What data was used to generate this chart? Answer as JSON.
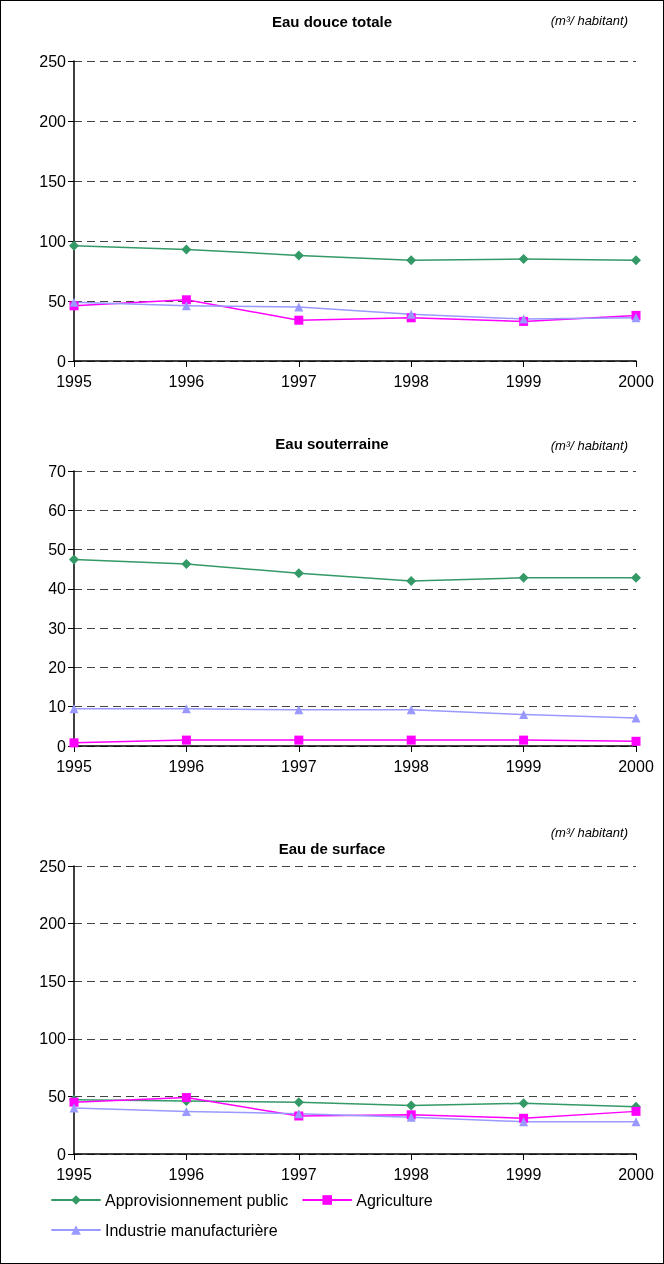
{
  "chart_data": [
    {
      "type": "line",
      "title": "Eau douce totale",
      "ylabel": "(m³/ habitant)",
      "categories": [
        "1995",
        "1996",
        "1997",
        "1998",
        "1999",
        "2000"
      ],
      "ylim": [
        0,
        250
      ],
      "yticks": [
        0,
        50,
        100,
        150,
        200,
        250
      ],
      "grid": "y",
      "legend": false,
      "line_style": "solid",
      "series": [
        {
          "color": "#339966",
          "marker": "diamond",
          "values": [
            96,
            93,
            88,
            84,
            85,
            84
          ]
        },
        {
          "color": "#ff00ff",
          "marker": "square",
          "values": [
            46,
            51,
            34,
            36,
            33,
            38
          ]
        },
        {
          "color": "#9999ff",
          "marker": "triangle",
          "values": [
            49,
            46,
            45,
            39,
            35,
            36
          ]
        }
      ]
    },
    {
      "type": "line",
      "title": "Eau souterraine",
      "ylabel": "(m³/ habitant)",
      "categories": [
        "1995",
        "1996",
        "1997",
        "1998",
        "1999",
        "2000"
      ],
      "ylim": [
        0,
        70
      ],
      "yticks": [
        0,
        10,
        20,
        30,
        40,
        50,
        60,
        70
      ],
      "grid": "y",
      "legend": false,
      "line_style": "solid",
      "series": [
        {
          "color": "#339966",
          "marker": "diamond",
          "values": [
            47.5,
            46.3,
            44,
            42,
            42.8,
            42.8
          ]
        },
        {
          "color": "#ff00ff",
          "marker": "square",
          "values": [
            0.8,
            1.5,
            1.5,
            1.5,
            1.5,
            1.2
          ]
        },
        {
          "color": "#9999ff",
          "marker": "triangle",
          "values": [
            9.5,
            9.5,
            9.2,
            9.2,
            8,
            7.1
          ]
        }
      ]
    },
    {
      "type": "line",
      "title": "Eau de surface",
      "ylabel": "(m³/ habitant)",
      "categories": [
        "1995",
        "1996",
        "1997",
        "1998",
        "1999",
        "2000"
      ],
      "ylim": [
        0,
        250
      ],
      "yticks": [
        0,
        50,
        100,
        150,
        200,
        250
      ],
      "grid": "y",
      "legend": "bottom",
      "line_style": "solid",
      "series": [
        {
          "name": "Approvisionnement public",
          "color": "#339966",
          "marker": "diamond",
          "values": [
            47,
            46,
            45,
            42,
            44,
            41
          ]
        },
        {
          "name": "Agriculture",
          "color": "#ff00ff",
          "marker": "square",
          "values": [
            45,
            49,
            33,
            34,
            31,
            37
          ]
        },
        {
          "name": "Industrie manufacturière",
          "color": "#9999ff",
          "marker": "triangle",
          "values": [
            40,
            37,
            35,
            32,
            28,
            28
          ]
        }
      ]
    }
  ]
}
